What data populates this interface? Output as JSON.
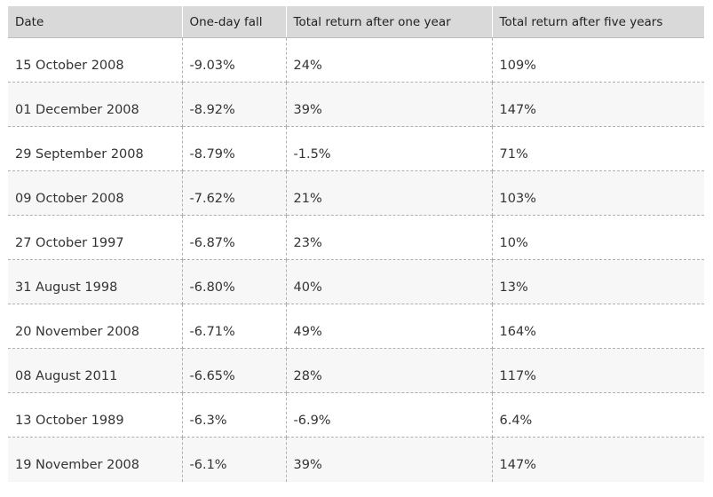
{
  "table": {
    "headers": [
      "Date",
      "One-day fall",
      "Total return after one year",
      "Total return after five years"
    ],
    "rows": [
      [
        "15 October 2008",
        "-9.03%",
        "24%",
        "109%"
      ],
      [
        "01 December 2008",
        "-8.92%",
        "39%",
        "147%"
      ],
      [
        "29 September 2008",
        "-8.79%",
        "-1.5%",
        "71%"
      ],
      [
        "09 October 2008",
        "-7.62%",
        "21%",
        "103%"
      ],
      [
        "27 October 1997",
        "-6.87%",
        "23%",
        "10%"
      ],
      [
        "31 August 1998",
        "-6.80%",
        "40%",
        "13%"
      ],
      [
        "20 November 2008",
        "-6.71%",
        "49%",
        "164%"
      ],
      [
        "08 August 2011",
        "-6.65%",
        "28%",
        "117%"
      ],
      [
        "13 October 1989",
        "-6.3%",
        "-6.9%",
        "6.4%"
      ],
      [
        "19 November 2008",
        "-6.1%",
        "39%",
        "147%"
      ]
    ]
  },
  "colors": {
    "header_bg": "#d9d9d9",
    "stripe_bg": "#f7f7f7",
    "text": "#333333"
  }
}
